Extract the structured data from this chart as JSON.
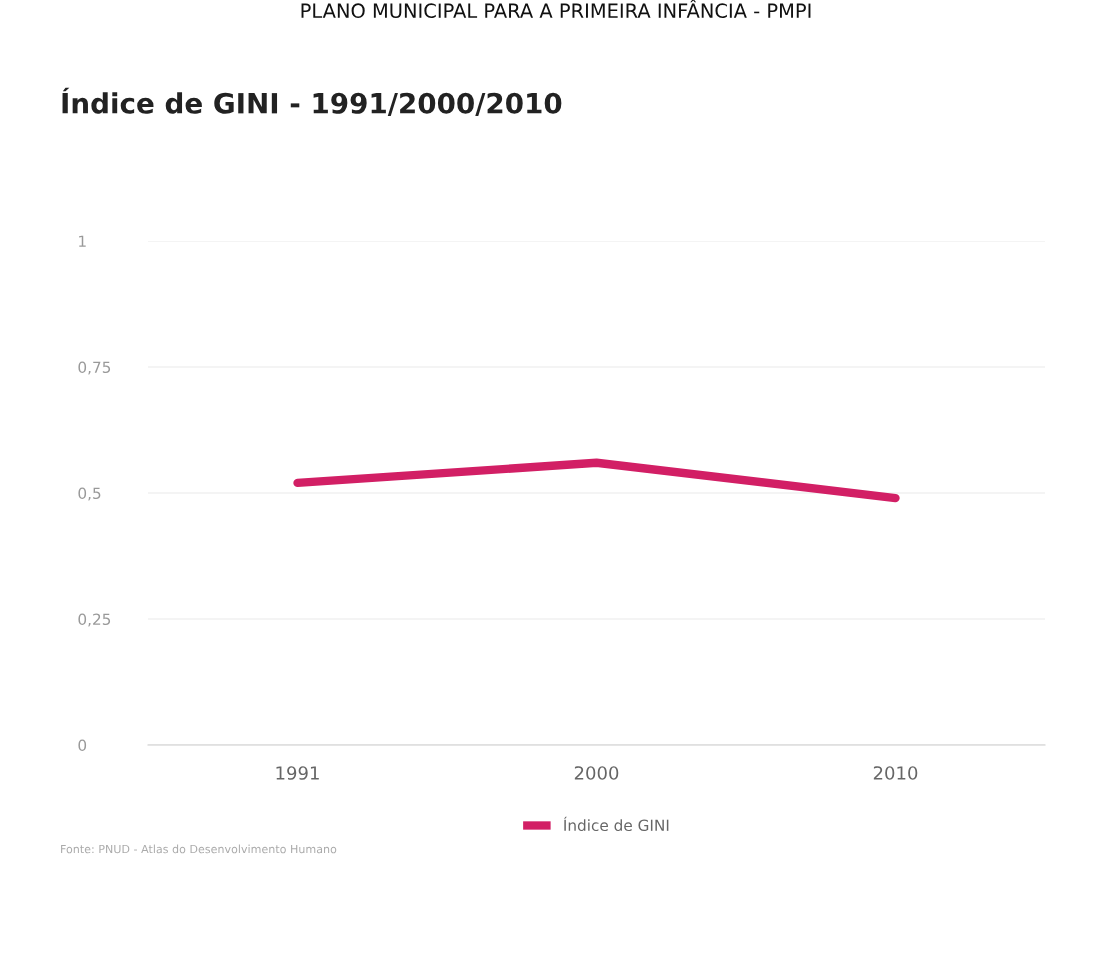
{
  "chart_data": {
    "type": "line",
    "title": "Índice de GINI - 1991/2000/2010",
    "categories": [
      "1991",
      "2000",
      "2010"
    ],
    "series": [
      {
        "name": "Índice de GINI",
        "color": "#d21f65",
        "values": [
          0.52,
          0.56,
          0.49
        ]
      }
    ],
    "ylim": [
      0,
      1
    ],
    "yticks": [
      {
        "value": 0,
        "label": "0"
      },
      {
        "value": 0.25,
        "label": "0,25"
      },
      {
        "value": 0.5,
        "label": "0,5"
      },
      {
        "value": 0.75,
        "label": "0,75"
      },
      {
        "value": 1,
        "label": "1"
      }
    ],
    "grid": "y",
    "legend": "bottom",
    "marker": "none",
    "line_style": "solid",
    "annotations": [
      "PLANO MUNICIPAL PARA A PRIMEIRA INFÂNCIA - PMPI",
      "Fonte: PNUD - Atlas do Desenvolvimento Humano"
    ]
  }
}
